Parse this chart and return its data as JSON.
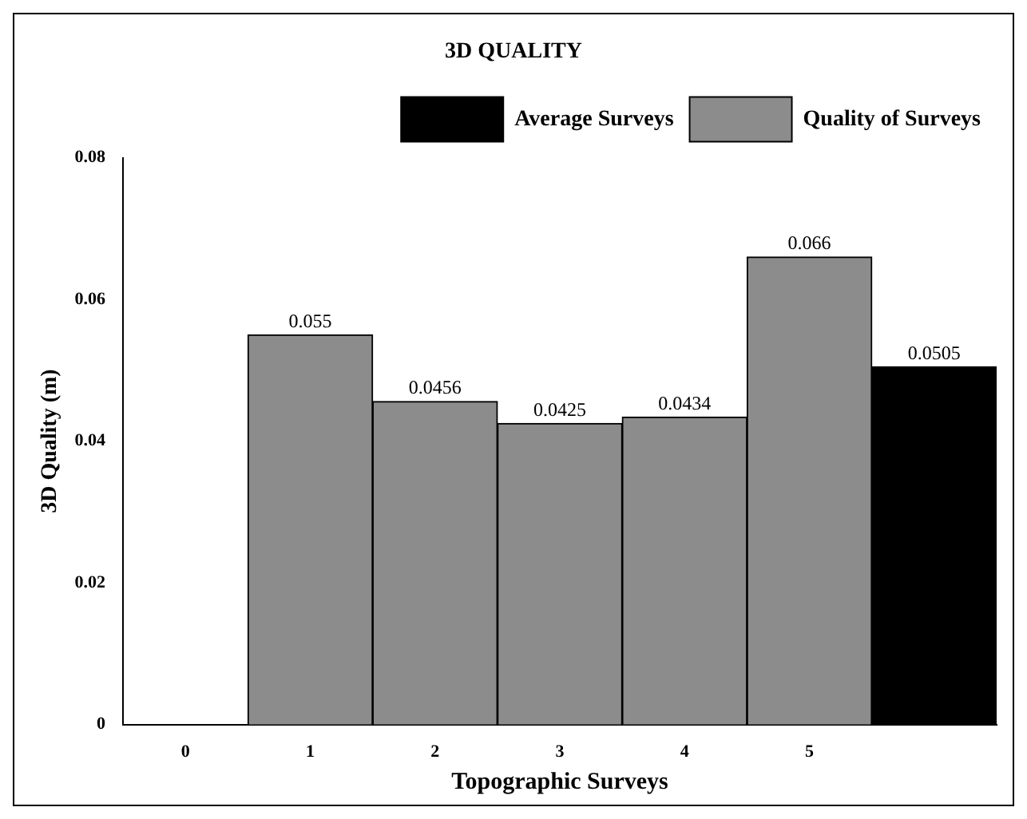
{
  "chart_data": {
    "type": "bar",
    "title": "3D QUALITY",
    "xlabel": "Topographic Surveys",
    "ylabel": "3D Quality (m)",
    "categories": [
      "0",
      "1",
      "2",
      "3",
      "4",
      "5",
      null
    ],
    "series": [
      {
        "name": "Average Surveys",
        "color": "#000000",
        "values": [
          null,
          null,
          null,
          null,
          null,
          null,
          0.0505
        ]
      },
      {
        "name": "Quality of Surveys",
        "color": "#8c8c8c",
        "values": [
          null,
          0.055,
          0.0456,
          0.0425,
          0.0434,
          0.066,
          null
        ]
      }
    ],
    "ylim": [
      0,
      0.08
    ],
    "yticks": [
      0,
      0.02,
      0.04,
      0.06,
      0.08
    ],
    "grid": false,
    "legend": "top right",
    "data_labels": true
  }
}
